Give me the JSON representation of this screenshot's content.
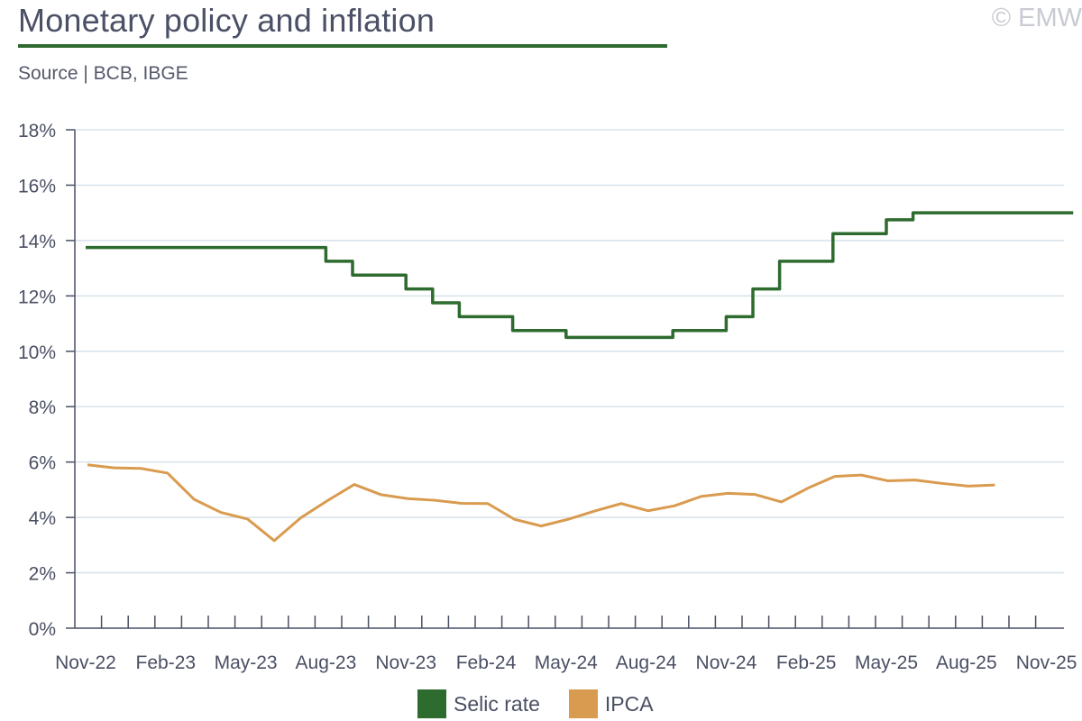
{
  "header": {
    "title": "Monetary policy and inflation",
    "source": "Source | BCB, IBGE",
    "copyright": "© EMW"
  },
  "colors": {
    "selic": "#2e6b2f",
    "ipca": "#d99b4f",
    "title_rule": "#2e6b2f",
    "grid": "#d6e2ea",
    "axis": "#4a4f63"
  },
  "chart_data": {
    "type": "line",
    "title": "Monetary policy and inflation",
    "xlabel": "",
    "ylabel": "",
    "ylim": [
      0,
      18
    ],
    "y_ticks": [
      "0%",
      "2%",
      "4%",
      "6%",
      "8%",
      "10%",
      "12%",
      "14%",
      "16%",
      "18%"
    ],
    "x_tick_labels": [
      "Nov-22",
      "Feb-23",
      "May-23",
      "Aug-23",
      "Nov-23",
      "Feb-24",
      "May-24",
      "Aug-24",
      "Nov-24",
      "Feb-25",
      "May-25",
      "Aug-25",
      "Nov-25"
    ],
    "months": [
      "Nov-22",
      "Dec-22",
      "Jan-23",
      "Feb-23",
      "Mar-23",
      "Apr-23",
      "May-23",
      "Jun-23",
      "Jul-23",
      "Aug-23",
      "Sep-23",
      "Oct-23",
      "Nov-23",
      "Dec-23",
      "Jan-24",
      "Feb-24",
      "Mar-24",
      "Apr-24",
      "May-24",
      "Jun-24",
      "Jul-24",
      "Aug-24",
      "Sep-24",
      "Oct-24",
      "Nov-24",
      "Dec-24",
      "Jan-25",
      "Feb-25",
      "Mar-25",
      "Apr-25",
      "May-25",
      "Jun-25",
      "Jul-25",
      "Aug-25",
      "Sep-25",
      "Oct-25",
      "Nov-25"
    ],
    "legend": [
      "Selic rate",
      "IPCA"
    ],
    "legend_position": "bottom",
    "grid": true,
    "series": [
      {
        "name": "Selic rate",
        "style": "step",
        "values": [
          13.75,
          13.75,
          13.75,
          13.75,
          13.75,
          13.75,
          13.75,
          13.75,
          13.75,
          13.25,
          12.75,
          12.75,
          12.25,
          11.75,
          11.25,
          11.25,
          10.75,
          10.75,
          10.5,
          10.5,
          10.5,
          10.5,
          10.75,
          10.75,
          11.25,
          12.25,
          13.25,
          13.25,
          14.25,
          14.25,
          14.75,
          15.0,
          15.0,
          15.0,
          15.0,
          15.0,
          15.0
        ]
      },
      {
        "name": "IPCA",
        "style": "line",
        "values": [
          5.9,
          5.79,
          5.77,
          5.6,
          4.65,
          4.18,
          3.94,
          3.16,
          3.99,
          4.61,
          5.19,
          4.82,
          4.68,
          4.62,
          4.51,
          4.5,
          3.93,
          3.69,
          3.93,
          4.23,
          4.5,
          4.24,
          4.42,
          4.76,
          4.87,
          4.83,
          4.56,
          5.06,
          5.48,
          5.53,
          5.32,
          5.35,
          5.23,
          5.13,
          5.17
        ]
      }
    ]
  }
}
